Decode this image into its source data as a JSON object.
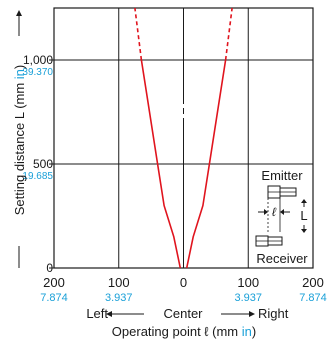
{
  "chart_data": {
    "type": "line",
    "title": "",
    "xlabel": "Operating point ℓ (mm in)",
    "xlabel_main": "Operating point ℓ (mm ",
    "xlabel_unit": "in",
    "xlabel_close": ")",
    "ylabel": "Setting distance L (mm in)",
    "ylabel_main": "Setting distance L (mm ",
    "ylabel_unit": "in",
    "ylabel_close": ")",
    "xlim": [
      -200,
      200
    ],
    "ylim": [
      0,
      1250
    ],
    "x_ticks": [
      {
        "value": -200,
        "mm": "200",
        "inch": "7.874"
      },
      {
        "value": -100,
        "mm": "100",
        "inch": "3.937"
      },
      {
        "value": 0,
        "mm": "0",
        "inch": ""
      },
      {
        "value": 100,
        "mm": "100",
        "inch": "3.937"
      },
      {
        "value": 200,
        "mm": "200",
        "inch": "7.874"
      }
    ],
    "y_ticks": [
      {
        "value": 0,
        "mm": "0",
        "inch": ""
      },
      {
        "value": 500,
        "mm": "500",
        "inch": "19.685"
      },
      {
        "value": 1000,
        "mm": "1,000",
        "inch": "39.370"
      }
    ],
    "direction_labels": {
      "left": "Left",
      "center": "Center",
      "right": "Right"
    },
    "series": [
      {
        "points": [
          [
            -5,
            0
          ],
          [
            -15,
            150
          ],
          [
            -30,
            300
          ],
          [
            -40,
            500
          ],
          [
            -55,
            800
          ],
          [
            -65,
            1000
          ]
        ],
        "dashed_extension": [
          [
            -65,
            1000
          ],
          [
            -75,
            1250
          ]
        ]
      },
      {
        "points": [
          [
            5,
            0
          ],
          [
            15,
            150
          ],
          [
            30,
            300
          ],
          [
            40,
            500
          ],
          [
            55,
            800
          ],
          [
            65,
            1000
          ]
        ],
        "dashed_extension": [
          [
            65,
            1000
          ],
          [
            75,
            1250
          ]
        ]
      }
    ],
    "inset": {
      "emitter_label": "Emitter",
      "receiver_label": "Receiver",
      "l_symbol": "ℓ",
      "L_symbol": "L"
    }
  },
  "colors": {
    "curve": "#e0141e",
    "inch_text": "#1aa0d8"
  }
}
